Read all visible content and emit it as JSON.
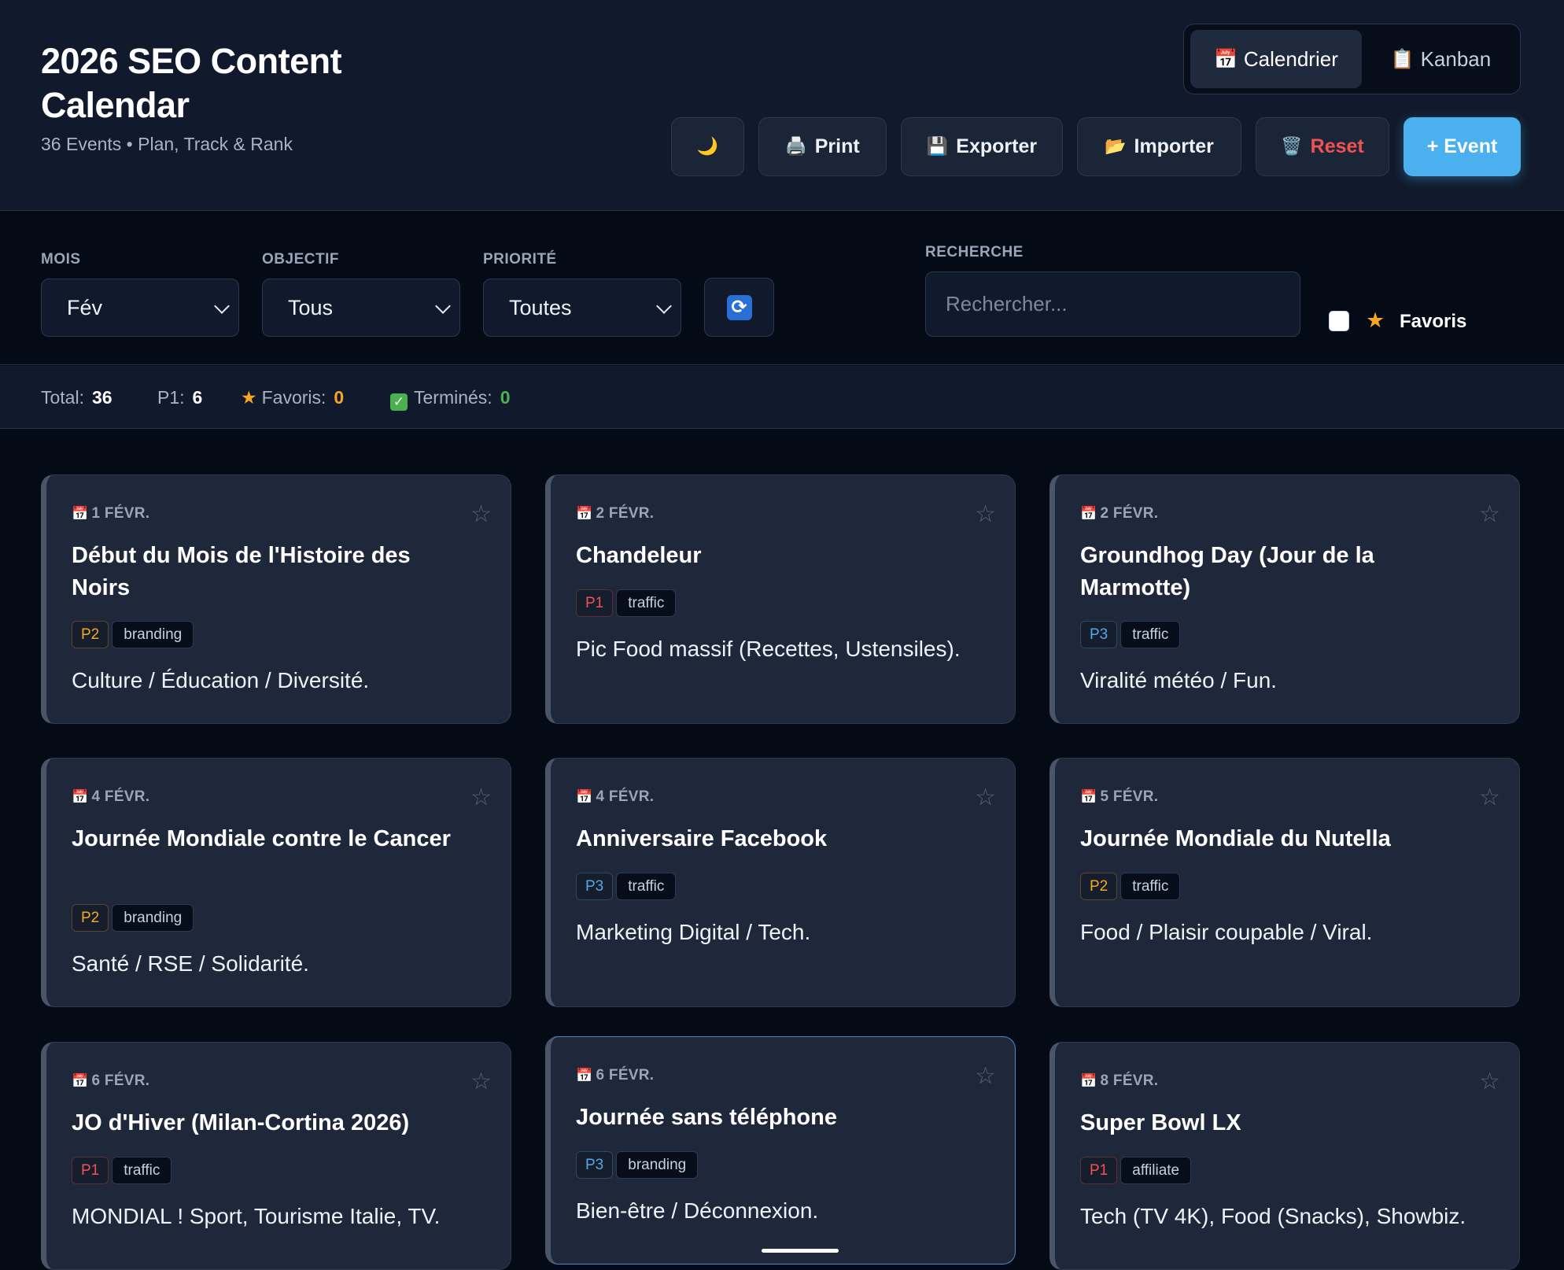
{
  "header": {
    "title": "2026 SEO Content Calendar",
    "subtitle": "36 Events • Plan, Track & Rank",
    "view_toggle": [
      {
        "icon": "📅",
        "label": "Calendrier",
        "active": true
      },
      {
        "icon": "📋",
        "label": "Kanban",
        "active": false
      }
    ],
    "actions": {
      "theme_icon": "🌙",
      "print": {
        "icon": "🖨️",
        "label": "Print"
      },
      "export": {
        "icon": "💾",
        "label": "Exporter"
      },
      "import": {
        "icon": "📂",
        "label": "Importer"
      },
      "reset": {
        "icon": "🗑️",
        "label": "Reset"
      },
      "add": {
        "label": "+ Event"
      }
    }
  },
  "filters": {
    "month": {
      "label": "MOIS",
      "value": "Fév"
    },
    "objective": {
      "label": "OBJECTIF",
      "value": "Tous"
    },
    "priority": {
      "label": "PRIORITÉ",
      "value": "Toutes"
    },
    "search": {
      "label": "RECHERCHE",
      "placeholder": "Rechercher..."
    },
    "favorites": {
      "label": "Favoris",
      "checked": false
    }
  },
  "stats": {
    "total_label": "Total:",
    "total": "36",
    "p1_label": "P1:",
    "p1": "6",
    "fav_label": "Favoris:",
    "fav": "0",
    "done_label": "Terminés:",
    "done": "0"
  },
  "colors": {
    "accent": "#4bb0ee",
    "p1": "#ef5350",
    "p2": "#f5a623",
    "p3": "#4fa8e8",
    "favorite": "#f5a623",
    "done": "#4caf50"
  },
  "cards": [
    {
      "date": "1 FÉVR.",
      "title": "Début du Mois de l'Histoire des Noirs",
      "priority": "P2",
      "objective": "branding",
      "desc": "Culture / Éducation / Diversité."
    },
    {
      "date": "2 FÉVR.",
      "title": "Chandeleur",
      "priority": "P1",
      "objective": "traffic",
      "desc": "Pic Food massif (Recettes, Ustensiles)."
    },
    {
      "date": "2 FÉVR.",
      "title": "Groundhog Day (Jour de la Marmotte)",
      "priority": "P3",
      "objective": "traffic",
      "desc": "Viralité météo / Fun."
    },
    {
      "date": "4 FÉVR.",
      "title": "Journée Mondiale contre le Cancer",
      "priority": "P2",
      "objective": "branding",
      "desc": "Santé / RSE / Solidarité."
    },
    {
      "date": "4 FÉVR.",
      "title": "Anniversaire Facebook",
      "priority": "P3",
      "objective": "traffic",
      "desc": "Marketing Digital / Tech."
    },
    {
      "date": "5 FÉVR.",
      "title": "Journée Mondiale du Nutella",
      "priority": "P2",
      "objective": "traffic",
      "desc": "Food / Plaisir coupable / Viral."
    },
    {
      "date": "6 FÉVR.",
      "title": "JO d'Hiver (Milan-Cortina 2026)",
      "priority": "P1",
      "objective": "traffic",
      "desc": "MONDIAL ! Sport, Tourisme Italie, TV."
    },
    {
      "date": "6 FÉVR.",
      "title": "Journée sans téléphone",
      "priority": "P3",
      "objective": "branding",
      "desc": "Bien-être / Déconnexion."
    },
    {
      "date": "8 FÉVR.",
      "title": "Super Bowl LX",
      "priority": "P1",
      "objective": "affiliate",
      "desc": "Tech (TV 4K), Food (Snacks), Showbiz."
    }
  ]
}
